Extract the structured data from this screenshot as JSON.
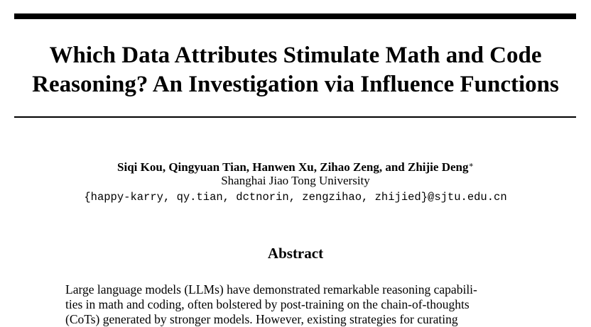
{
  "paper": {
    "title_lines": [
      "Which Data Attributes Stimulate Math and Code",
      "Reasoning? An Investigation via Influence Functions"
    ],
    "authors": "Siqi Kou,  Qingyuan Tian,  Hanwen Xu,  Zihao Zeng,  and Zhijie Deng",
    "corresponding_mark": "∗",
    "affiliation": "Shanghai Jiao Tong University",
    "emails": "{happy-karry, qy.tian, dctnorin, zengzihao, zhijied}@sjtu.edu.cn",
    "abstract_heading": "Abstract",
    "abstract_lines": [
      "Large language models (LLMs) have demonstrated remarkable reasoning capabili-",
      "ties in math and coding, often bolstered by post-training on the chain-of-thoughts",
      "(CoTs) generated by stronger models. However, existing strategies for curating"
    ]
  }
}
